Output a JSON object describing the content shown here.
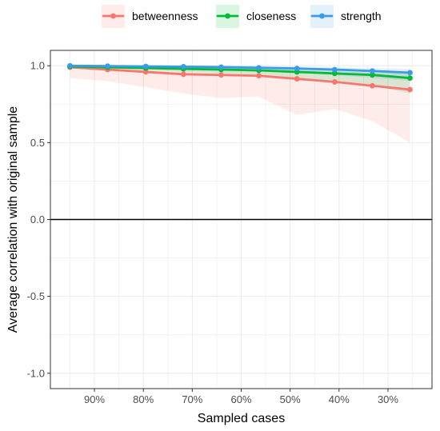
{
  "chart_data": {
    "type": "line",
    "xlabel": "Sampled cases",
    "ylabel": "Average correlation with original sample",
    "x_ticks": [
      "90%",
      "80%",
      "70%",
      "60%",
      "50%",
      "40%",
      "30%"
    ],
    "x_tick_values": [
      0.9,
      0.8,
      0.7,
      0.6,
      0.5,
      0.4,
      0.3
    ],
    "y_ticks": [
      "1.0",
      "0.5",
      "0.0",
      "-0.5",
      "-1.0"
    ],
    "y_tick_values": [
      1.0,
      0.5,
      0.0,
      -0.5,
      -1.0
    ],
    "xlim": [
      0.99,
      0.21
    ],
    "ylim": [
      -1.1,
      1.1
    ],
    "x_reversed": true,
    "reference_line_y": 0,
    "grid": true,
    "legend_position": "top",
    "x": [
      0.95,
      0.873,
      0.795,
      0.718,
      0.641,
      0.564,
      0.486,
      0.409,
      0.332,
      0.255
    ],
    "series": [
      {
        "name": "betweenness",
        "color": "#F8766D",
        "values": [
          0.99,
          0.975,
          0.96,
          0.945,
          0.94,
          0.935,
          0.915,
          0.895,
          0.87,
          0.845
        ],
        "lower": [
          0.92,
          0.9,
          0.86,
          0.82,
          0.79,
          0.8,
          0.68,
          0.72,
          0.64,
          0.5
        ],
        "upper": [
          1.0,
          0.995,
          0.99,
          0.985,
          0.985,
          0.98,
          0.97,
          0.965,
          0.955,
          0.95
        ]
      },
      {
        "name": "closeness",
        "color": "#00BA38",
        "values": [
          0.995,
          0.99,
          0.985,
          0.98,
          0.975,
          0.97,
          0.96,
          0.95,
          0.94,
          0.92
        ],
        "lower": [
          0.985,
          0.98,
          0.97,
          0.96,
          0.95,
          0.94,
          0.92,
          0.9,
          0.87,
          0.82
        ],
        "upper": [
          1.0,
          1.0,
          1.0,
          0.995,
          0.995,
          0.99,
          0.985,
          0.98,
          0.97,
          0.96
        ]
      },
      {
        "name": "strength",
        "color": "#3C9BE6",
        "values": [
          1.0,
          0.998,
          0.996,
          0.994,
          0.991,
          0.987,
          0.982,
          0.975,
          0.966,
          0.955
        ],
        "lower": [
          0.995,
          0.99,
          0.985,
          0.98,
          0.975,
          0.97,
          0.96,
          0.94,
          0.92,
          0.9
        ],
        "upper": [
          1.0,
          1.0,
          1.0,
          1.0,
          1.0,
          1.0,
          0.995,
          0.99,
          0.985,
          0.98
        ]
      }
    ]
  }
}
